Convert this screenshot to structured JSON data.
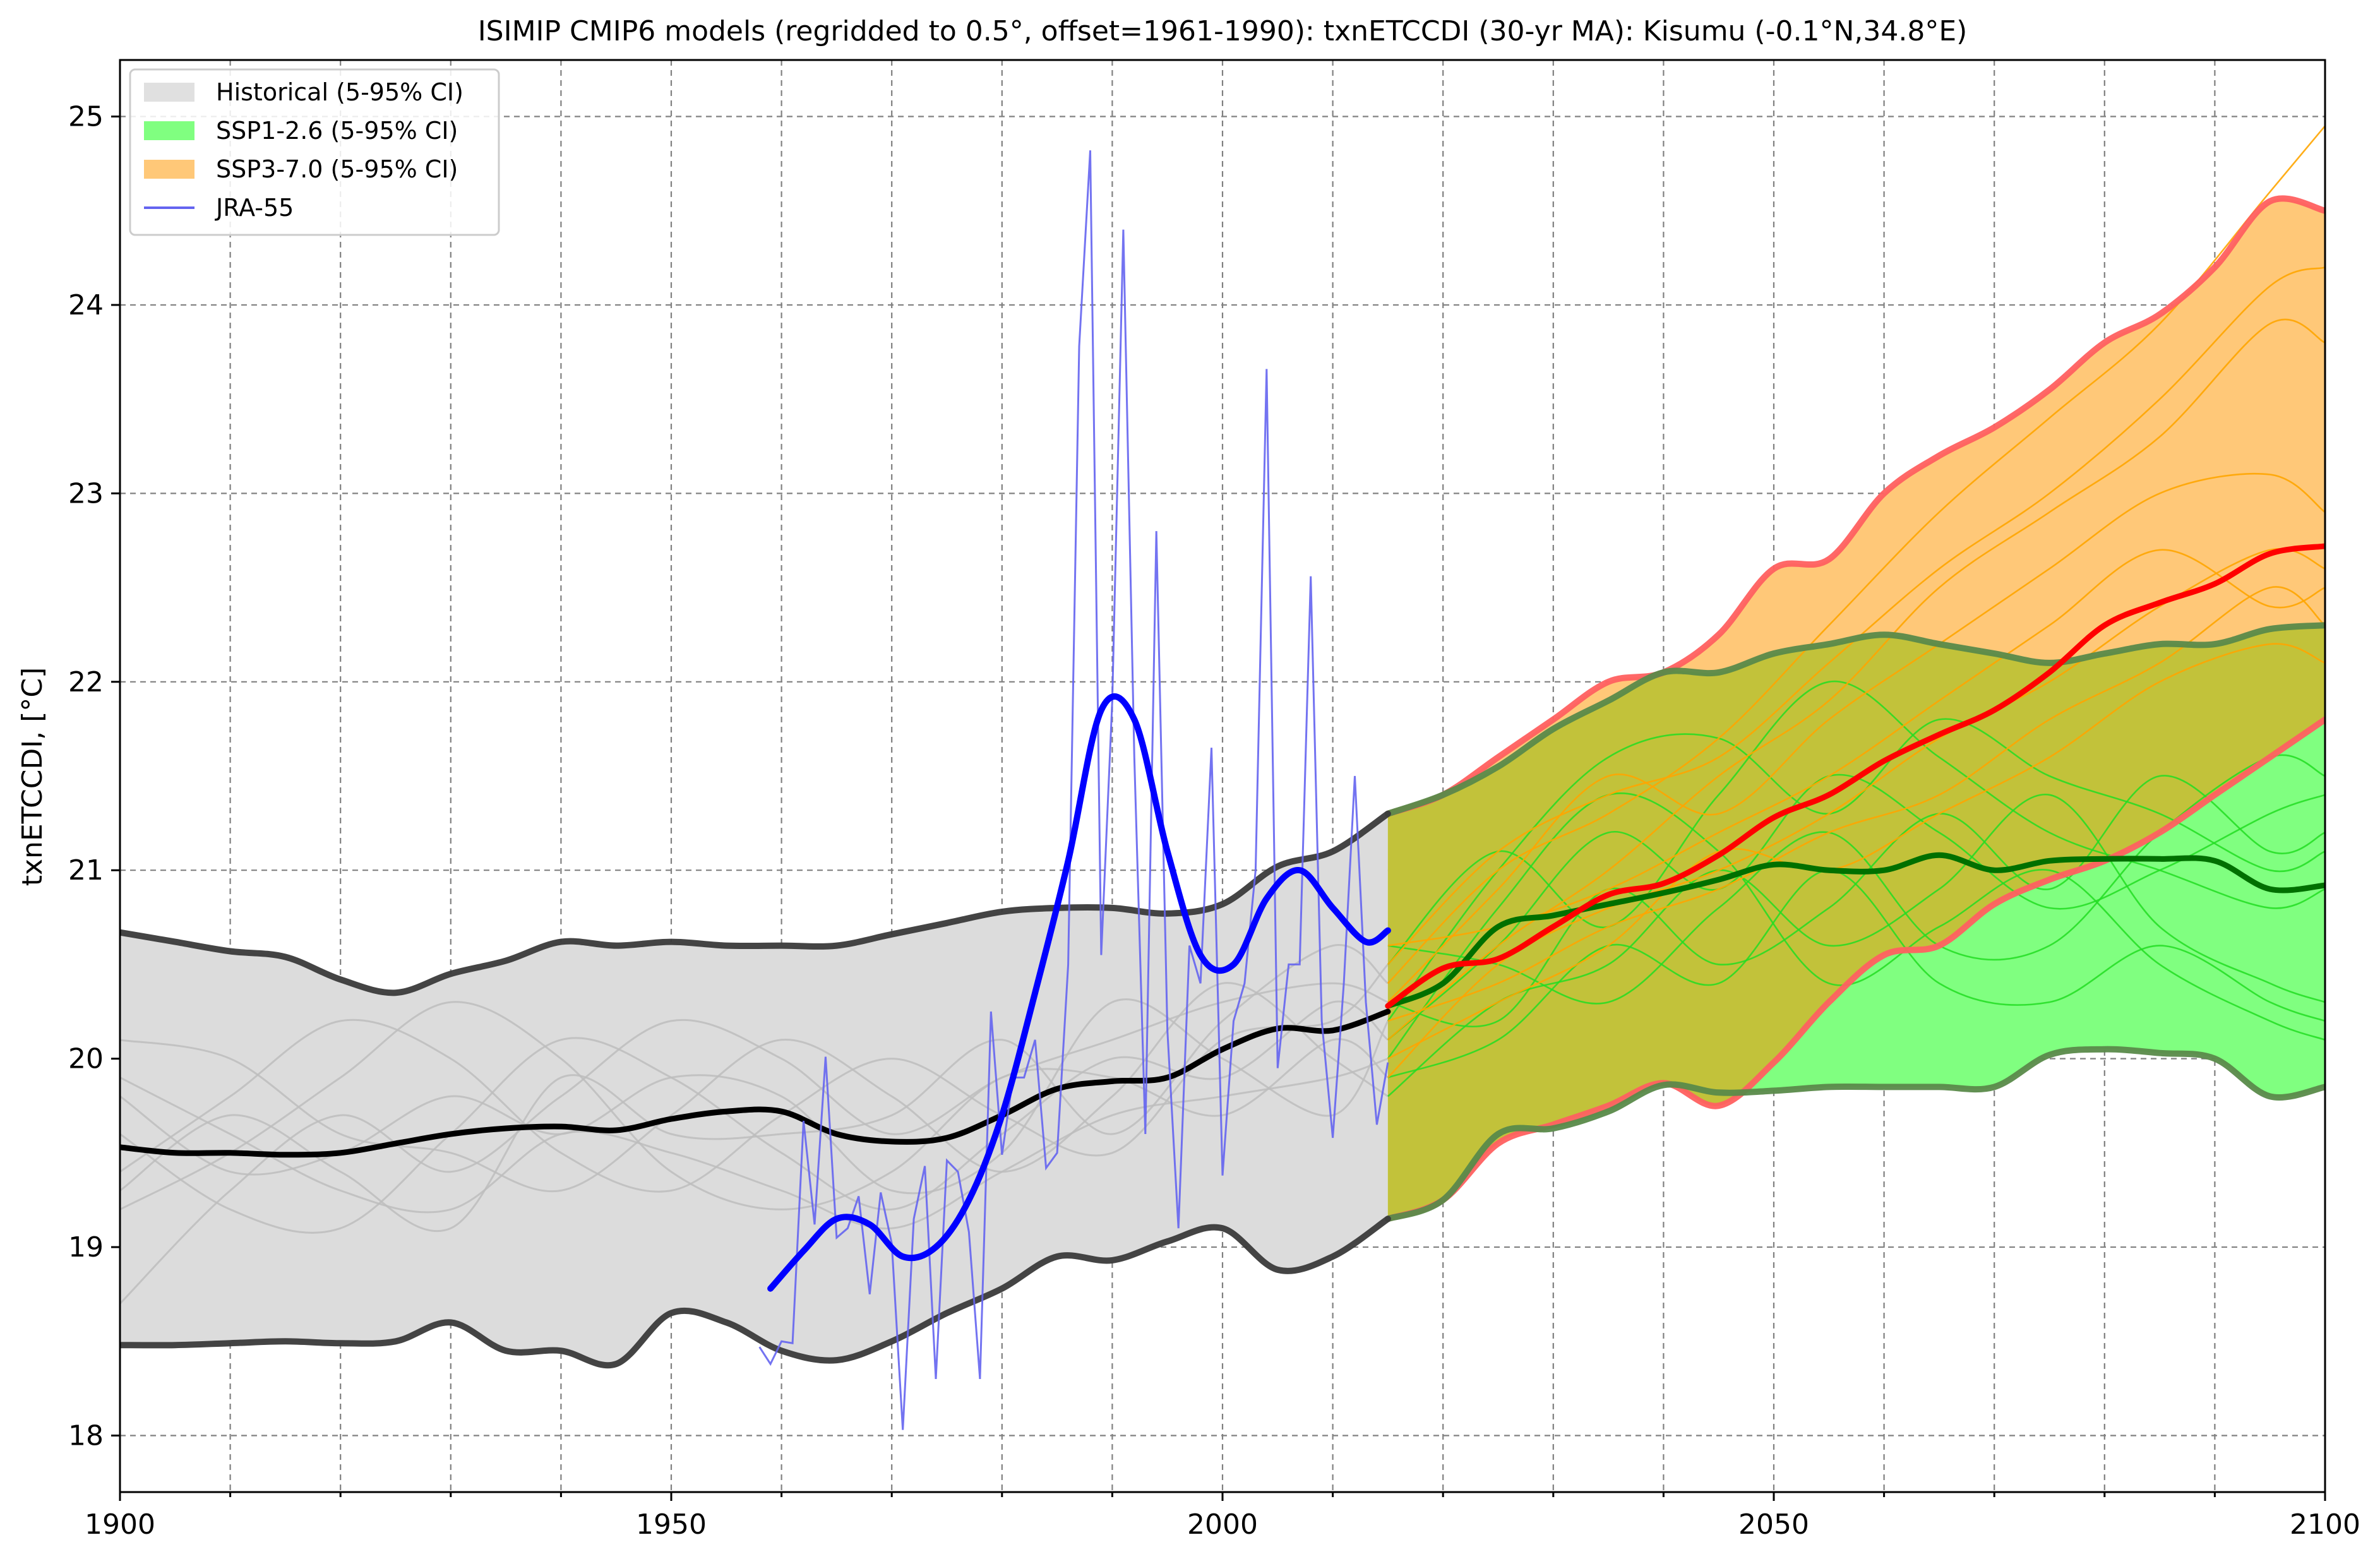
{
  "chart_data": {
    "type": "line",
    "title": "ISIMIP CMIP6 models (regridded to 0.5°, offset=1961-1990): txnETCCDI (30-yr MA): Kisumu (-0.1°N,34.8°E)",
    "xlabel": "",
    "ylabel": "txnETCCDI, [°C]",
    "xlim": [
      1900,
      2100
    ],
    "ylim": [
      17.7,
      25.3
    ],
    "x_ticks": [
      1900,
      1950,
      2000,
      2050,
      2100
    ],
    "x_tick_labels": [
      "1900",
      "1950",
      "2000",
      "2050",
      "2100"
    ],
    "y_ticks": [
      18,
      19,
      20,
      21,
      22,
      23,
      24,
      25
    ],
    "y_tick_labels": [
      "18",
      "19",
      "20",
      "21",
      "22",
      "23",
      "24",
      "25"
    ],
    "grid": true,
    "legend_placement": "upper-left",
    "legend": [
      {
        "label": "Historical (5-95% CI)",
        "color": "#e0e0e0",
        "kind": "patch"
      },
      {
        "label": "SSP1-2.6 (5-95% CI)",
        "color": "#80ff80",
        "kind": "patch"
      },
      {
        "label": "SSP3-7.0 (5-95% CI)",
        "color": "#ffc878",
        "kind": "patch"
      },
      {
        "label": "JRA-55",
        "color": "#6464f0",
        "kind": "line"
      }
    ],
    "colors": {
      "historical_fill": "#dcdcdc",
      "historical_bound": "#3a3a3a",
      "historical_mean": "#000000",
      "historical_members": "#bdbdbd",
      "ssp126_fill": "#80ff80",
      "ssp126_bound": "#5a8a4a",
      "ssp126_mean": "#007000",
      "ssp126_members": "#22dd22",
      "ssp370_fill": "#ffc878",
      "ssp370_bound": "#ff6060",
      "ssp370_mean": "#ff0000",
      "ssp370_members": "#ffa500",
      "overlap_fill": "#c2c23a",
      "jra_annual": "#6464f0",
      "jra_smooth": "#0000ff"
    },
    "series": [
      {
        "key": "historical_upper",
        "x": [
          1900,
          1905,
          1910,
          1915,
          1920,
          1925,
          1930,
          1935,
          1940,
          1945,
          1950,
          1955,
          1960,
          1965,
          1970,
          1975,
          1980,
          1985,
          1990,
          1995,
          2000,
          2005,
          2010,
          2015
        ],
        "y": [
          20.67,
          20.62,
          20.57,
          20.54,
          20.42,
          20.35,
          20.45,
          20.52,
          20.62,
          20.6,
          20.62,
          20.6,
          20.6,
          20.6,
          20.66,
          20.72,
          20.78,
          20.8,
          20.8,
          20.77,
          20.82,
          21.02,
          21.1,
          21.3
        ]
      },
      {
        "key": "historical_lower",
        "x": [
          1900,
          1905,
          1910,
          1915,
          1920,
          1925,
          1930,
          1935,
          1940,
          1945,
          1950,
          1955,
          1960,
          1965,
          1970,
          1975,
          1980,
          1985,
          1990,
          1995,
          2000,
          2005,
          2010,
          2015
        ],
        "y": [
          18.48,
          18.48,
          18.49,
          18.5,
          18.49,
          18.5,
          18.6,
          18.45,
          18.45,
          18.38,
          18.65,
          18.6,
          18.45,
          18.4,
          18.5,
          18.65,
          18.78,
          18.95,
          18.93,
          19.03,
          19.1,
          18.88,
          18.95,
          19.15
        ]
      },
      {
        "key": "historical_mean",
        "x": [
          1900,
          1905,
          1910,
          1915,
          1920,
          1925,
          1930,
          1935,
          1940,
          1945,
          1950,
          1955,
          1960,
          1965,
          1970,
          1975,
          1980,
          1985,
          1990,
          1995,
          2000,
          2005,
          2010,
          2015
        ],
        "y": [
          19.53,
          19.5,
          19.5,
          19.49,
          19.5,
          19.55,
          19.6,
          19.63,
          19.64,
          19.62,
          19.68,
          19.72,
          19.72,
          19.6,
          19.56,
          19.58,
          19.7,
          19.84,
          19.88,
          19.9,
          20.05,
          20.16,
          20.15,
          20.25
        ]
      },
      {
        "key": "ssp126_upper",
        "x": [
          2015,
          2020,
          2025,
          2030,
          2035,
          2040,
          2045,
          2050,
          2055,
          2060,
          2065,
          2070,
          2075,
          2080,
          2085,
          2090,
          2095,
          2100
        ],
        "y": [
          21.3,
          21.4,
          21.55,
          21.75,
          21.9,
          22.05,
          22.05,
          22.15,
          22.2,
          22.25,
          22.2,
          22.15,
          22.1,
          22.15,
          22.2,
          22.2,
          22.28,
          22.3
        ]
      },
      {
        "key": "ssp126_lower",
        "x": [
          2015,
          2020,
          2025,
          2030,
          2035,
          2040,
          2045,
          2050,
          2055,
          2060,
          2065,
          2070,
          2075,
          2080,
          2085,
          2090,
          2095,
          2100
        ],
        "y": [
          19.15,
          19.25,
          19.6,
          19.63,
          19.72,
          19.86,
          19.82,
          19.83,
          19.85,
          19.85,
          19.85,
          19.85,
          20.02,
          20.05,
          20.03,
          20.0,
          19.8,
          19.85
        ]
      },
      {
        "key": "ssp126_mean",
        "x": [
          2015,
          2020,
          2025,
          2030,
          2035,
          2040,
          2045,
          2050,
          2055,
          2060,
          2065,
          2070,
          2075,
          2080,
          2085,
          2090,
          2095,
          2100
        ],
        "y": [
          20.28,
          20.4,
          20.7,
          20.76,
          20.82,
          20.88,
          20.95,
          21.03,
          21.0,
          21.0,
          21.08,
          21.0,
          21.05,
          21.06,
          21.06,
          21.05,
          20.9,
          20.92
        ]
      },
      {
        "key": "ssp370_upper",
        "x": [
          2015,
          2020,
          2025,
          2030,
          2035,
          2040,
          2045,
          2050,
          2055,
          2060,
          2065,
          2070,
          2075,
          2080,
          2085,
          2090,
          2095,
          2100
        ],
        "y": [
          21.3,
          21.4,
          21.6,
          21.8,
          22.0,
          22.05,
          22.25,
          22.6,
          22.65,
          23.0,
          23.2,
          23.35,
          23.55,
          23.8,
          23.95,
          24.2,
          24.55,
          24.5
        ]
      },
      {
        "key": "ssp370_lower",
        "x": [
          2015,
          2020,
          2025,
          2030,
          2035,
          2040,
          2045,
          2050,
          2055,
          2060,
          2065,
          2070,
          2075,
          2080,
          2085,
          2090,
          2095,
          2100
        ],
        "y": [
          19.15,
          19.25,
          19.55,
          19.65,
          19.75,
          19.87,
          19.75,
          19.98,
          20.3,
          20.55,
          20.6,
          20.82,
          20.95,
          21.05,
          21.2,
          21.4,
          21.6,
          21.8
        ]
      },
      {
        "key": "ssp370_mean",
        "x": [
          2015,
          2020,
          2025,
          2030,
          2035,
          2040,
          2045,
          2050,
          2055,
          2060,
          2065,
          2070,
          2075,
          2080,
          2085,
          2090,
          2095,
          2100
        ],
        "y": [
          20.28,
          20.48,
          20.53,
          20.7,
          20.87,
          20.93,
          21.08,
          21.28,
          21.4,
          21.58,
          21.72,
          21.85,
          22.05,
          22.3,
          22.42,
          22.52,
          22.68,
          22.72
        ]
      },
      {
        "key": "jra55_smooth",
        "name": "JRA-55",
        "x": [
          1959,
          1962,
          1965,
          1968,
          1971,
          1974,
          1977,
          1980,
          1983,
          1986,
          1989,
          1992,
          1995,
          1998,
          2001,
          2004,
          2007,
          2010,
          2013,
          2015
        ],
        "y": [
          18.78,
          18.98,
          19.15,
          19.12,
          18.95,
          19.0,
          19.25,
          19.7,
          20.35,
          21.05,
          21.85,
          21.8,
          21.1,
          20.55,
          20.5,
          20.85,
          21.0,
          20.8,
          20.62,
          20.68
        ]
      },
      {
        "key": "jra55_annual",
        "name": "JRA-55",
        "x": [
          1958,
          1959,
          1960,
          1961,
          1962,
          1963,
          1964,
          1965,
          1966,
          1967,
          1968,
          1969,
          1970,
          1971,
          1972,
          1973,
          1974,
          1975,
          1976,
          1977,
          1978,
          1979,
          1980,
          1981,
          1982,
          1983,
          1984,
          1985,
          1986,
          1987,
          1988,
          1989,
          1990,
          1991,
          1992,
          1993,
          1994,
          1995,
          1996,
          1997,
          1998,
          1999,
          2000,
          2001,
          2002,
          2003,
          2004,
          2005,
          2006,
          2007,
          2008,
          2009,
          2010,
          2011,
          2012,
          2013,
          2014,
          2015
        ],
        "y": [
          18.47,
          18.38,
          18.5,
          18.49,
          19.67,
          19.12,
          20.01,
          19.05,
          19.1,
          19.27,
          18.75,
          19.29,
          19.02,
          18.03,
          19.15,
          19.43,
          18.3,
          19.46,
          19.4,
          19.08,
          18.3,
          20.25,
          19.49,
          19.9,
          19.9,
          20.1,
          19.42,
          19.5,
          20.5,
          23.78,
          24.82,
          20.55,
          21.9,
          24.4,
          21.6,
          19.6,
          22.8,
          20.15,
          19.1,
          20.6,
          20.4,
          21.65,
          19.38,
          20.2,
          20.4,
          21.0,
          23.66,
          19.95,
          20.5,
          20.5,
          22.56,
          20.2,
          19.58,
          20.4,
          21.5,
          20.3,
          19.65,
          19.98
        ]
      },
      {
        "key": "historical_members",
        "x": [
          1900,
          1910,
          1920,
          1930,
          1940,
          1950,
          1960,
          1970,
          1980,
          1990,
          2000,
          2010,
          2015
        ],
        "members": [
          [
            18.7,
            19.3,
            19.7,
            19.4,
            19.8,
            20.2,
            20.0,
            19.6,
            19.9,
            20.1,
            20.3,
            20.4,
            20.3
          ],
          [
            19.9,
            19.6,
            19.3,
            19.2,
            19.6,
            19.5,
            19.3,
            19.1,
            19.4,
            19.7,
            19.8,
            19.9,
            20.0
          ],
          [
            19.4,
            19.8,
            20.2,
            20.0,
            19.5,
            19.3,
            19.7,
            20.0,
            19.7,
            19.5,
            20.1,
            20.2,
            20.5
          ],
          [
            19.6,
            19.2,
            19.1,
            19.6,
            20.1,
            19.9,
            19.5,
            19.2,
            19.6,
            20.0,
            19.9,
            20.3,
            20.1
          ],
          [
            20.1,
            20.0,
            19.6,
            19.5,
            19.3,
            19.7,
            20.1,
            19.8,
            19.4,
            19.8,
            20.4,
            20.0,
            19.8
          ],
          [
            19.2,
            19.5,
            19.9,
            20.3,
            20.0,
            19.4,
            19.2,
            19.4,
            19.9,
            19.9,
            19.7,
            20.1,
            19.9
          ],
          [
            19.8,
            19.4,
            19.5,
            19.8,
            19.6,
            19.9,
            19.8,
            19.3,
            19.5,
            20.3,
            20.0,
            19.7,
            20.2
          ],
          [
            19.3,
            19.7,
            19.4,
            19.1,
            19.9,
            19.6,
            19.6,
            19.7,
            20.1,
            19.6,
            20.2,
            20.6,
            20.4
          ]
        ]
      },
      {
        "key": "ssp126_members",
        "x": [
          2015,
          2025,
          2035,
          2045,
          2055,
          2065,
          2075,
          2085,
          2095,
          2100
        ],
        "members": [
          [
            20.1,
            20.6,
            21.2,
            20.9,
            21.5,
            21.2,
            20.8,
            21.0,
            21.3,
            21.4
          ],
          [
            19.8,
            20.3,
            20.5,
            21.0,
            20.6,
            20.9,
            21.4,
            20.7,
            20.4,
            20.3
          ],
          [
            20.5,
            21.1,
            20.7,
            21.4,
            22.0,
            21.6,
            21.2,
            21.0,
            20.8,
            20.9
          ],
          [
            20.3,
            20.2,
            20.9,
            20.5,
            20.8,
            21.3,
            20.9,
            21.5,
            21.1,
            21.2
          ],
          [
            20.0,
            20.8,
            21.4,
            21.1,
            20.4,
            20.7,
            21.0,
            20.5,
            20.2,
            20.1
          ],
          [
            20.6,
            20.5,
            20.3,
            20.8,
            21.2,
            20.6,
            20.6,
            21.2,
            21.6,
            21.5
          ],
          [
            20.2,
            21.0,
            21.6,
            21.7,
            21.3,
            21.8,
            21.5,
            21.3,
            21.0,
            21.1
          ],
          [
            19.9,
            20.1,
            20.6,
            20.4,
            21.0,
            20.4,
            20.3,
            20.6,
            20.3,
            20.2
          ]
        ]
      },
      {
        "key": "ssp370_members",
        "x": [
          2015,
          2025,
          2035,
          2045,
          2055,
          2065,
          2075,
          2085,
          2095,
          2100
        ],
        "members": [
          [
            20.4,
            21.0,
            21.3,
            21.7,
            22.3,
            22.9,
            23.4,
            23.9,
            24.6,
            24.95
          ],
          [
            20.1,
            20.6,
            21.0,
            21.5,
            21.9,
            22.5,
            22.9,
            23.3,
            23.9,
            23.8
          ],
          [
            20.3,
            20.9,
            21.5,
            21.3,
            21.8,
            22.2,
            22.6,
            23.0,
            23.1,
            22.9
          ],
          [
            20.6,
            20.7,
            20.9,
            21.2,
            21.5,
            21.9,
            22.3,
            22.7,
            22.4,
            22.5
          ],
          [
            19.9,
            20.5,
            20.8,
            21.0,
            21.3,
            21.7,
            22.0,
            22.4,
            22.7,
            22.6
          ],
          [
            20.2,
            20.4,
            20.7,
            20.9,
            21.2,
            21.4,
            21.8,
            22.1,
            22.5,
            22.3
          ],
          [
            20.5,
            21.1,
            21.4,
            21.6,
            22.1,
            22.6,
            23.0,
            23.5,
            24.1,
            24.2
          ],
          [
            20.0,
            20.3,
            20.6,
            21.1,
            21.0,
            21.3,
            21.6,
            22.0,
            22.2,
            22.1
          ]
        ]
      }
    ]
  }
}
